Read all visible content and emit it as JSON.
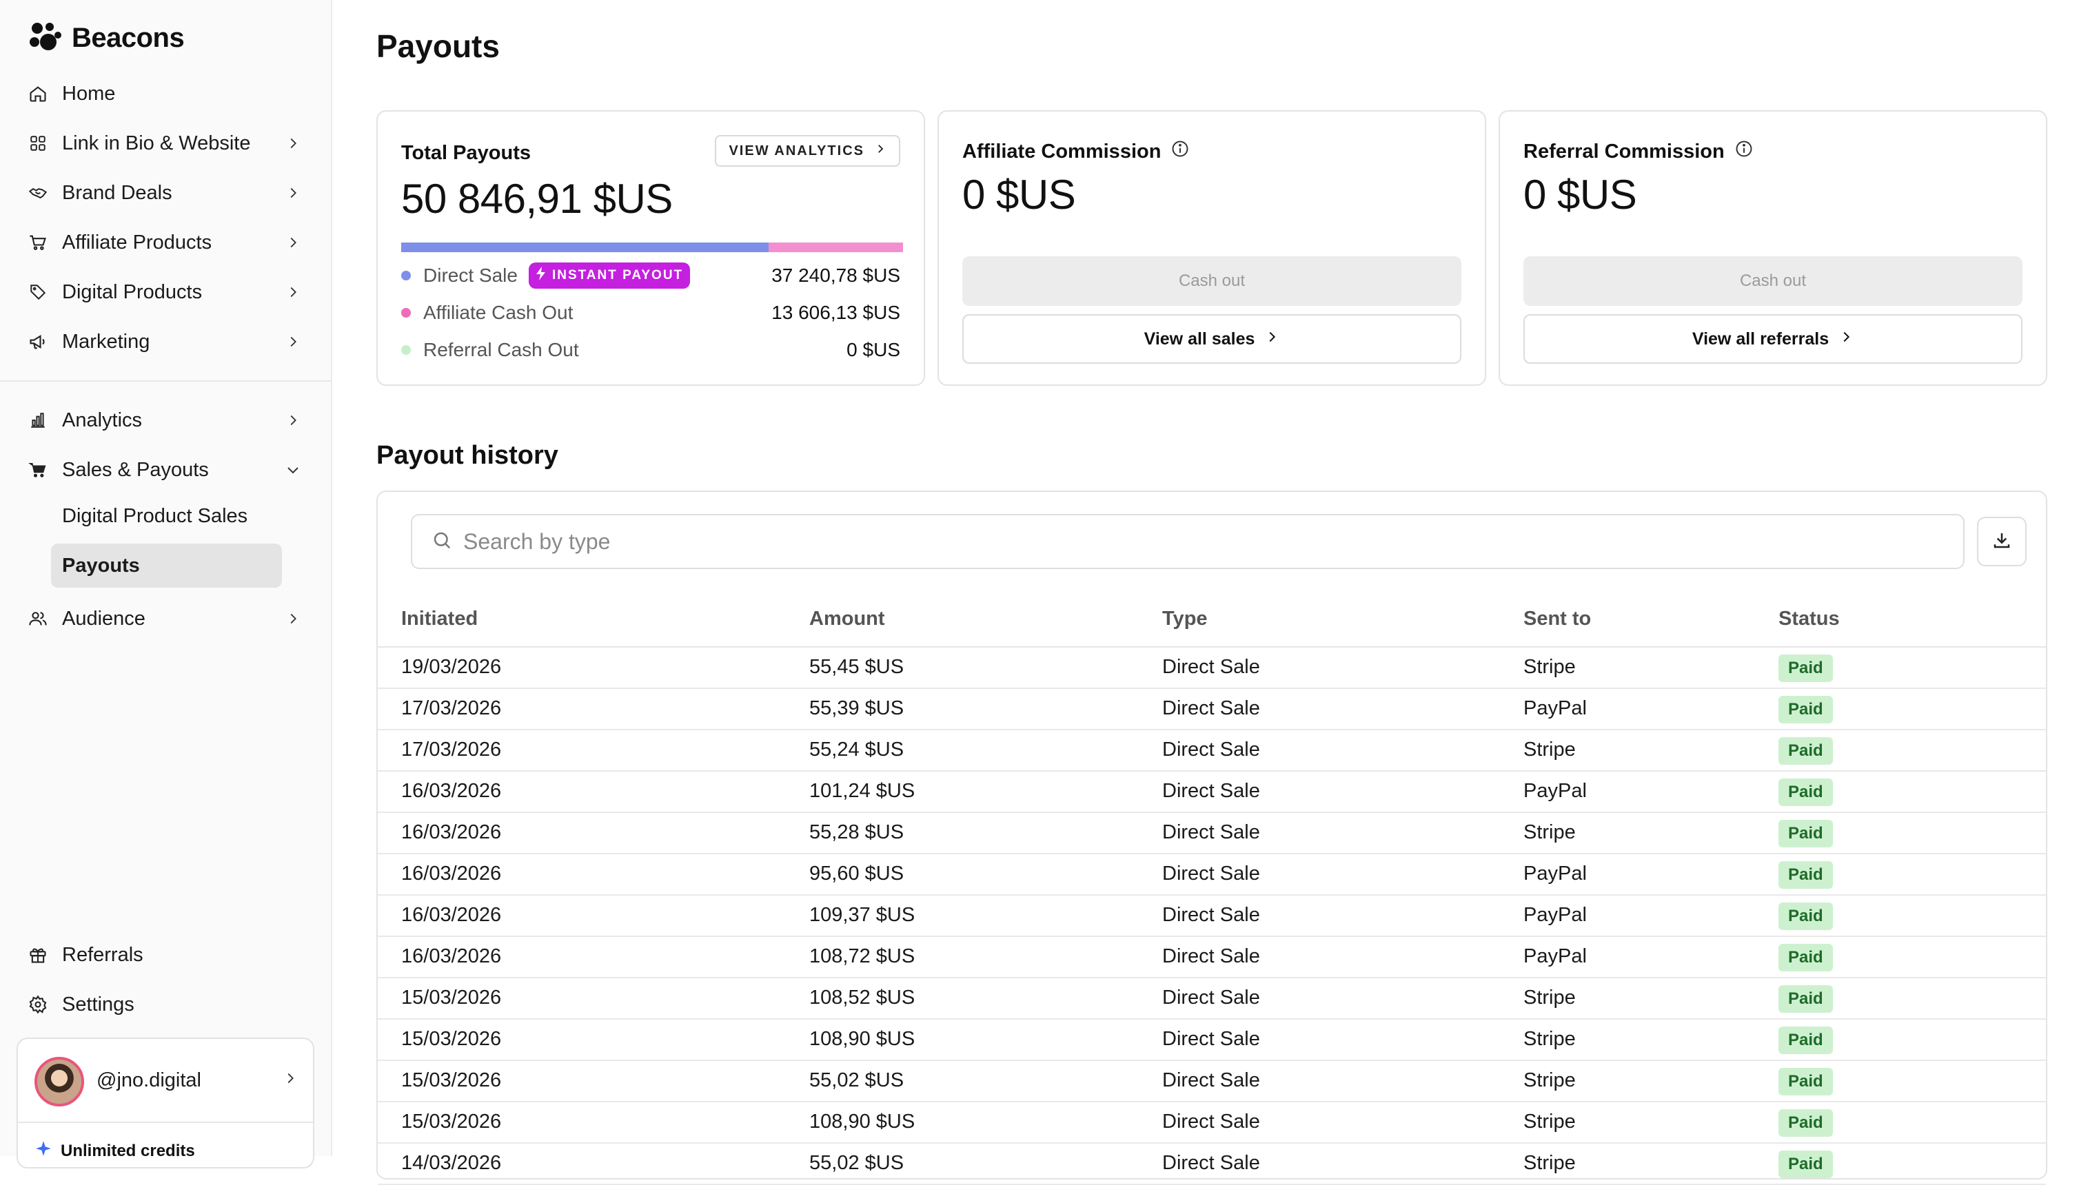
{
  "brand": {
    "name": "Beacons"
  },
  "sidebar": {
    "items": [
      {
        "label": "Home",
        "icon": "home-icon",
        "chevron": false
      },
      {
        "label": "Link in Bio & Website",
        "icon": "grid-icon",
        "chevron": true
      },
      {
        "label": "Brand Deals",
        "icon": "handshake-icon",
        "chevron": true
      },
      {
        "label": "Affiliate Products",
        "icon": "cart-icon",
        "chevron": true
      },
      {
        "label": "Digital Products",
        "icon": "tag-icon",
        "chevron": true
      },
      {
        "label": "Marketing",
        "icon": "megaphone-icon",
        "chevron": true
      },
      {
        "label": "Analytics",
        "icon": "bar-chart-icon",
        "chevron": true
      },
      {
        "label": "Sales & Payouts",
        "icon": "shopping-cart-icon",
        "chevron": "down"
      },
      {
        "label": "Audience",
        "icon": "users-icon",
        "chevron": true
      }
    ],
    "sub_items": [
      {
        "label": "Digital Product Sales",
        "active": false
      },
      {
        "label": "Payouts",
        "active": true
      }
    ],
    "bottom": [
      {
        "label": "Referrals",
        "icon": "gift-icon"
      },
      {
        "label": "Settings",
        "icon": "gear-icon"
      }
    ],
    "user": {
      "handle": "@jno.digital",
      "credits": "Unlimited credits"
    }
  },
  "page": {
    "title": "Payouts"
  },
  "cards": {
    "total": {
      "title": "Total Payouts",
      "amount": "50 846,91 $US",
      "analytics_button": "VIEW ANALYTICS",
      "bar": [
        {
          "label": "Direct Sale",
          "share": 0.732,
          "color": "#7d8fe8"
        },
        {
          "label": "Affiliate Cash Out",
          "share": 0.268,
          "color": "#f48fcf"
        },
        {
          "label": "Referral Cash Out",
          "share": 0.0,
          "color": "#bfeec3"
        }
      ],
      "legend": [
        {
          "label": "Direct Sale",
          "value": "37 240,78 $US",
          "color": "#7d8fe8",
          "badge": "INSTANT PAYOUT"
        },
        {
          "label": "Affiliate Cash Out",
          "value": "13 606,13 $US",
          "color": "#f06bb8"
        },
        {
          "label": "Referral Cash Out",
          "value": "0 $US",
          "color": "#c6efc9"
        }
      ]
    },
    "affiliate": {
      "title": "Affiliate Commission",
      "amount": "0 $US",
      "cash_out": "Cash out",
      "view": "View all sales"
    },
    "referral": {
      "title": "Referral Commission",
      "amount": "0 $US",
      "cash_out": "Cash out",
      "view": "View all referrals"
    }
  },
  "history": {
    "title": "Payout history",
    "search_placeholder": "Search by type",
    "columns": [
      "Initiated",
      "Amount",
      "Type",
      "Sent to",
      "Status"
    ],
    "rows": [
      [
        "19/03/2026",
        "55,45 $US",
        "Direct Sale",
        "Stripe",
        "Paid"
      ],
      [
        "17/03/2026",
        "55,39 $US",
        "Direct Sale",
        "PayPal",
        "Paid"
      ],
      [
        "17/03/2026",
        "55,24 $US",
        "Direct Sale",
        "Stripe",
        "Paid"
      ],
      [
        "16/03/2026",
        "101,24 $US",
        "Direct Sale",
        "PayPal",
        "Paid"
      ],
      [
        "16/03/2026",
        "55,28 $US",
        "Direct Sale",
        "Stripe",
        "Paid"
      ],
      [
        "16/03/2026",
        "95,60 $US",
        "Direct Sale",
        "PayPal",
        "Paid"
      ],
      [
        "16/03/2026",
        "109,37 $US",
        "Direct Sale",
        "PayPal",
        "Paid"
      ],
      [
        "16/03/2026",
        "108,72 $US",
        "Direct Sale",
        "PayPal",
        "Paid"
      ],
      [
        "15/03/2026",
        "108,52 $US",
        "Direct Sale",
        "Stripe",
        "Paid"
      ],
      [
        "15/03/2026",
        "108,90 $US",
        "Direct Sale",
        "Stripe",
        "Paid"
      ],
      [
        "15/03/2026",
        "55,02 $US",
        "Direct Sale",
        "Stripe",
        "Paid"
      ],
      [
        "15/03/2026",
        "108,90 $US",
        "Direct Sale",
        "Stripe",
        "Paid"
      ],
      [
        "14/03/2026",
        "55,02 $US",
        "Direct Sale",
        "Stripe",
        "Paid"
      ]
    ]
  },
  "colors": {
    "accent_instant": "#c51fe0",
    "paid_bg": "#cdf1cf",
    "paid_text": "#1e6b2a"
  }
}
